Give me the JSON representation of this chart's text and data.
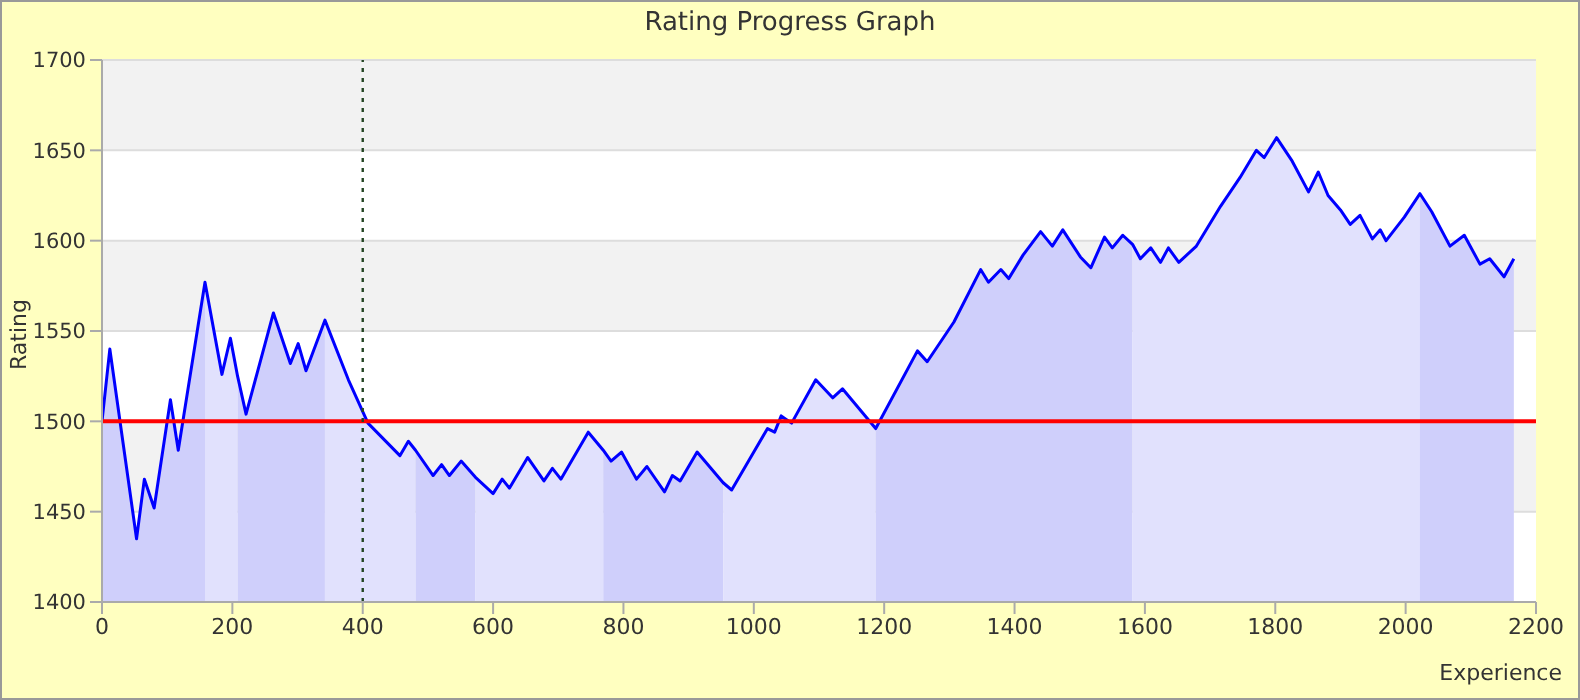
{
  "chart_data": {
    "type": "line",
    "title": "Rating Progress Graph",
    "xlabel": "Experience",
    "ylabel": "Rating",
    "xlim": [
      0,
      2200
    ],
    "xticks": [
      0,
      200,
      400,
      600,
      800,
      1000,
      1200,
      1400,
      1600,
      1800,
      2000,
      2200
    ],
    "ylim": [
      1400,
      1700
    ],
    "yticks": [
      1400,
      1450,
      1500,
      1550,
      1600,
      1650,
      1700
    ],
    "grid": "y",
    "marker": "none",
    "ref_lines": [
      {
        "axis": "y",
        "value": 1500,
        "color": "#ff0000",
        "line_style": "solid"
      },
      {
        "axis": "x",
        "value": 400,
        "color": "#224422",
        "line_style": "dotted"
      }
    ],
    "series": [
      {
        "type": "area",
        "color": "#cfcffb",
        "x": [
          0,
          12,
          53,
          65,
          80,
          105,
          117,
          158
        ],
        "values": [
          1500,
          1540,
          1435,
          1468,
          1452,
          1512,
          1484,
          1577
        ]
      },
      {
        "type": "area",
        "color": "#e1e1fd",
        "x": [
          158,
          184,
          197,
          208
        ],
        "values": [
          1577,
          1526,
          1546,
          1525
        ]
      },
      {
        "type": "area",
        "color": "#cfcffb",
        "x": [
          208,
          221,
          263,
          289,
          301,
          313,
          342
        ],
        "values": [
          1525,
          1504,
          1560,
          1532,
          1543,
          1528,
          1556
        ]
      },
      {
        "type": "area",
        "color": "#e1e1fd",
        "x": [
          342,
          378,
          408,
          457,
          470,
          481
        ],
        "values": [
          1556,
          1523,
          1499,
          1481,
          1489,
          1484
        ]
      },
      {
        "type": "area",
        "color": "#cfcffb",
        "x": [
          481,
          508,
          521,
          533,
          551,
          573
        ],
        "values": [
          1484,
          1470,
          1476,
          1470,
          1478,
          1469
        ]
      },
      {
        "type": "area",
        "color": "#e1e1fd",
        "x": [
          573,
          600,
          614,
          625,
          653,
          678,
          691,
          704,
          746,
          769
        ],
        "values": [
          1469,
          1460,
          1468,
          1463,
          1480,
          1467,
          1474,
          1468,
          1494,
          1484
        ]
      },
      {
        "type": "area",
        "color": "#cfcffb",
        "x": [
          769,
          781,
          797,
          820,
          836,
          863,
          875,
          887,
          913,
          953
        ],
        "values": [
          1484,
          1478,
          1483,
          1468,
          1475,
          1461,
          1470,
          1467,
          1483,
          1466
        ]
      },
      {
        "type": "area",
        "color": "#e1e1fd",
        "x": [
          953,
          966,
          1021,
          1032,
          1042,
          1058,
          1095,
          1121,
          1136,
          1187
        ],
        "values": [
          1466,
          1462,
          1496,
          1494,
          1503,
          1499,
          1523,
          1513,
          1518,
          1496
        ]
      },
      {
        "type": "area",
        "color": "#cfcffb",
        "x": [
          1187,
          1251,
          1266,
          1307,
          1348,
          1360,
          1379,
          1391,
          1413,
          1440,
          1458,
          1474,
          1501,
          1517,
          1538,
          1550,
          1566,
          1581
        ],
        "values": [
          1496,
          1539,
          1533,
          1555,
          1584,
          1577,
          1584,
          1579,
          1592,
          1605,
          1597,
          1606,
          1591,
          1585,
          1602,
          1596,
          1603,
          1598
        ]
      },
      {
        "type": "area",
        "color": "#e1e1fd",
        "x": [
          1581,
          1593,
          1609,
          1624,
          1636,
          1652,
          1679,
          1716,
          1746,
          1771,
          1783,
          1802,
          1826,
          1851,
          1866,
          1881,
          1900,
          1915,
          1930,
          1949,
          1961,
          1970,
          1998,
          2022
        ],
        "values": [
          1598,
          1590,
          1596,
          1588,
          1596,
          1588,
          1597,
          1619,
          1635,
          1650,
          1646,
          1657,
          1644,
          1627,
          1638,
          1625,
          1617,
          1609,
          1614,
          1601,
          1606,
          1600,
          1613,
          1626
        ]
      },
      {
        "type": "area",
        "color": "#cfcffb",
        "x": [
          2022,
          2040,
          2068,
          2090,
          2114,
          2129,
          2151,
          2166
        ],
        "values": [
          1626,
          1616,
          1597,
          1603,
          1587,
          1590,
          1580,
          1590
        ]
      },
      {
        "color": "#0000ff",
        "x": [
          0,
          12,
          53,
          65,
          80,
          105,
          117,
          158,
          184,
          197,
          208,
          221,
          263,
          289,
          301,
          313,
          342,
          378,
          408,
          457,
          470,
          481,
          508,
          521,
          533,
          551,
          573,
          600,
          614,
          625,
          653,
          678,
          691,
          704,
          746,
          769,
          781,
          797,
          820,
          836,
          863,
          875,
          887,
          913,
          953,
          966,
          1021,
          1032,
          1042,
          1058,
          1095,
          1121,
          1136,
          1187,
          1251,
          1266,
          1307,
          1348,
          1360,
          1379,
          1391,
          1413,
          1440,
          1458,
          1474,
          1501,
          1517,
          1538,
          1550,
          1566,
          1581,
          1593,
          1609,
          1624,
          1636,
          1652,
          1679,
          1716,
          1746,
          1771,
          1783,
          1802,
          1826,
          1851,
          1866,
          1881,
          1900,
          1915,
          1930,
          1949,
          1961,
          1970,
          1998,
          2022,
          2040,
          2068,
          2090,
          2114,
          2129,
          2151,
          2166
        ],
        "values": [
          1500,
          1540,
          1435,
          1468,
          1452,
          1512,
          1484,
          1577,
          1526,
          1546,
          1525,
          1504,
          1560,
          1532,
          1543,
          1528,
          1556,
          1523,
          1499,
          1481,
          1489,
          1484,
          1470,
          1476,
          1470,
          1478,
          1469,
          1460,
          1468,
          1463,
          1480,
          1467,
          1474,
          1468,
          1494,
          1484,
          1478,
          1483,
          1468,
          1475,
          1461,
          1470,
          1467,
          1483,
          1466,
          1462,
          1496,
          1494,
          1503,
          1499,
          1523,
          1513,
          1518,
          1496,
          1539,
          1533,
          1555,
          1584,
          1577,
          1584,
          1579,
          1592,
          1605,
          1597,
          1606,
          1591,
          1585,
          1602,
          1596,
          1603,
          1598,
          1590,
          1596,
          1588,
          1596,
          1588,
          1597,
          1619,
          1635,
          1650,
          1646,
          1657,
          1644,
          1627,
          1638,
          1625,
          1617,
          1609,
          1614,
          1601,
          1606,
          1600,
          1613,
          1626,
          1616,
          1597,
          1603,
          1587,
          1590,
          1580,
          1590
        ]
      }
    ]
  }
}
